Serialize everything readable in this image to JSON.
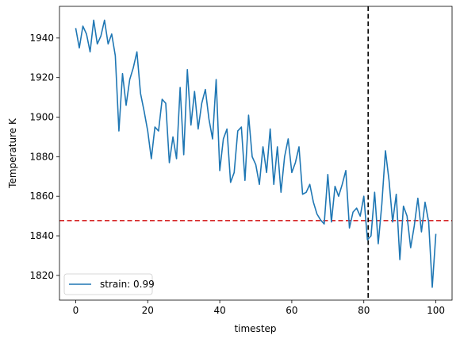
{
  "chart_data": {
    "type": "line",
    "xlabel": "timestep",
    "ylabel": "Temperature K",
    "xlim": [
      -4.5,
      104.5
    ],
    "ylim": [
      1807.5,
      1956
    ],
    "xticks": [
      0,
      20,
      40,
      60,
      80,
      100
    ],
    "yticks": [
      1820,
      1840,
      1860,
      1880,
      1900,
      1920,
      1940
    ],
    "grid": false,
    "legend_position": "lower-left",
    "series": [
      {
        "name": "strain: 0.99",
        "color": "#1f77b4",
        "x": [
          0,
          1,
          2,
          3,
          4,
          5,
          6,
          7,
          8,
          9,
          10,
          11,
          12,
          13,
          14,
          15,
          16,
          17,
          18,
          19,
          20,
          21,
          22,
          23,
          24,
          25,
          26,
          27,
          28,
          29,
          30,
          31,
          32,
          33,
          34,
          35,
          36,
          37,
          38,
          39,
          40,
          41,
          42,
          43,
          44,
          45,
          46,
          47,
          48,
          49,
          50,
          51,
          52,
          53,
          54,
          55,
          56,
          57,
          58,
          59,
          60,
          61,
          62,
          63,
          64,
          65,
          66,
          67,
          68,
          69,
          70,
          71,
          72,
          73,
          74,
          75,
          76,
          77,
          78,
          79,
          80,
          81,
          82,
          83,
          84,
          85,
          86,
          87,
          88,
          89,
          90,
          91,
          92,
          93,
          94,
          95,
          96,
          97,
          98,
          99,
          100
        ],
        "values": [
          1945,
          1935,
          1946,
          1942,
          1933,
          1949,
          1937,
          1941,
          1949,
          1937,
          1942,
          1931,
          1893,
          1922,
          1906,
          1919,
          1925,
          1933,
          1912,
          1903,
          1893,
          1879,
          1895,
          1893,
          1909,
          1907,
          1877,
          1890,
          1879,
          1915,
          1881,
          1924,
          1896,
          1913,
          1894,
          1907,
          1914,
          1899,
          1889,
          1919,
          1873,
          1889,
          1894,
          1867,
          1872,
          1893,
          1895,
          1868,
          1901,
          1880,
          1876,
          1866,
          1885,
          1872,
          1894,
          1866,
          1885,
          1862,
          1880,
          1889,
          1872,
          1877,
          1885,
          1861,
          1862,
          1866,
          1857,
          1851,
          1848,
          1846,
          1871,
          1847,
          1865,
          1860,
          1866,
          1873,
          1844,
          1852,
          1854,
          1850,
          1860,
          1838,
          1840,
          1862,
          1836,
          1856,
          1883,
          1868,
          1847,
          1861,
          1828,
          1855,
          1850,
          1834,
          1845,
          1859,
          1842,
          1857,
          1847,
          1814,
          1841
        ]
      }
    ],
    "hlines": [
      {
        "y": 1847.7,
        "color": "#d62728",
        "style": "dashed"
      }
    ],
    "vlines": [
      {
        "x": 81.2,
        "color": "#000000",
        "style": "dashed"
      }
    ]
  }
}
